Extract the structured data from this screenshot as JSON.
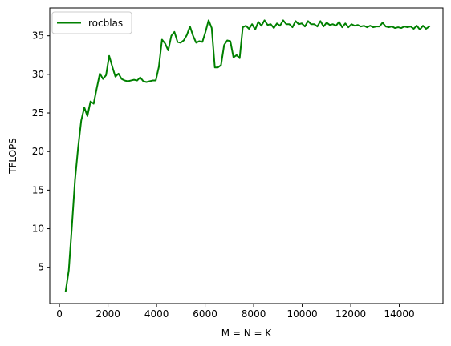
{
  "chart_data": {
    "type": "line",
    "title": "",
    "xlabel": "M = N = K",
    "ylabel": "TFLOPS",
    "xlim": [
      -400,
      15800
    ],
    "ylim": [
      0.3,
      38.6
    ],
    "xticks": [
      0,
      2000,
      4000,
      6000,
      8000,
      10000,
      12000,
      14000
    ],
    "yticks": [
      5,
      10,
      15,
      20,
      25,
      30,
      35
    ],
    "legend": {
      "position": "top-left"
    },
    "series": [
      {
        "name": "rocblas",
        "color": "#008000",
        "x": [
          256,
          384,
          512,
          640,
          768,
          896,
          1024,
          1152,
          1280,
          1408,
          1536,
          1664,
          1792,
          1920,
          2048,
          2176,
          2304,
          2432,
          2560,
          2688,
          2816,
          2944,
          3072,
          3200,
          3328,
          3456,
          3584,
          3712,
          3840,
          3968,
          4096,
          4224,
          4352,
          4480,
          4608,
          4736,
          4864,
          4992,
          5120,
          5248,
          5376,
          5504,
          5632,
          5760,
          5888,
          6016,
          6144,
          6272,
          6400,
          6528,
          6656,
          6784,
          6912,
          7040,
          7168,
          7296,
          7424,
          7552,
          7680,
          7808,
          7936,
          8064,
          8192,
          8320,
          8448,
          8576,
          8704,
          8832,
          8960,
          9088,
          9216,
          9344,
          9472,
          9600,
          9728,
          9856,
          9984,
          10112,
          10240,
          10368,
          10496,
          10624,
          10752,
          10880,
          11008,
          11136,
          11264,
          11392,
          11520,
          11648,
          11776,
          11904,
          12032,
          12160,
          12288,
          12416,
          12544,
          12672,
          12800,
          12928,
          13056,
          13184,
          13312,
          13440,
          13568,
          13696,
          13824,
          13952,
          14080,
          14208,
          14336,
          14464,
          14592,
          14720,
          14848,
          14976,
          15104,
          15232
        ],
        "values": [
          1.9,
          4.6,
          10.3,
          16.3,
          20.5,
          24.0,
          25.7,
          24.6,
          26.5,
          26.2,
          28.2,
          30.1,
          29.4,
          29.9,
          32.4,
          31.0,
          29.7,
          30.1,
          29.4,
          29.2,
          29.1,
          29.2,
          29.3,
          29.2,
          29.6,
          29.1,
          29.0,
          29.1,
          29.2,
          29.2,
          31.0,
          34.5,
          34.0,
          33.1,
          35.0,
          35.5,
          34.2,
          34.1,
          34.4,
          35.1,
          36.2,
          35.0,
          34.1,
          34.3,
          34.2,
          35.5,
          37.0,
          36.0,
          30.9,
          30.9,
          31.2,
          33.8,
          34.4,
          34.3,
          32.2,
          32.5,
          32.1,
          36.1,
          36.3,
          35.9,
          36.5,
          35.8,
          36.8,
          36.3,
          37.0,
          36.4,
          36.5,
          36.0,
          36.6,
          36.3,
          37.0,
          36.5,
          36.5,
          36.1,
          36.9,
          36.5,
          36.6,
          36.2,
          36.9,
          36.5,
          36.5,
          36.2,
          36.9,
          36.2,
          36.7,
          36.4,
          36.5,
          36.3,
          36.8,
          36.1,
          36.6,
          36.1,
          36.5,
          36.3,
          36.4,
          36.2,
          36.3,
          36.1,
          36.3,
          36.1,
          36.2,
          36.2,
          36.7,
          36.2,
          36.1,
          36.2,
          36.0,
          36.1,
          36.0,
          36.2,
          36.1,
          36.2,
          35.9,
          36.3,
          35.8,
          36.3,
          35.9,
          36.2
        ]
      }
    ]
  }
}
